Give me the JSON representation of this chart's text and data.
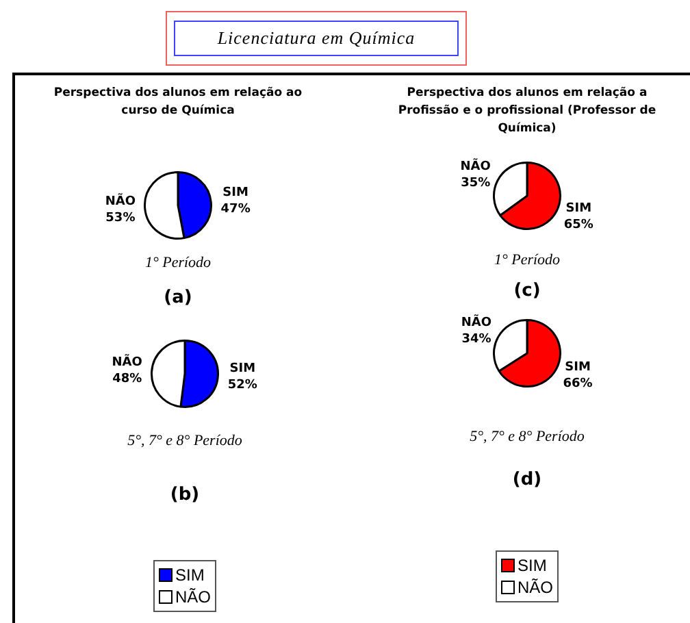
{
  "chart_data": [
    {
      "type": "pie",
      "title": "Licenciatura em Química",
      "subtitle": "Perspectiva dos alunos em relação ao curso de Química",
      "categories": [
        "SIM",
        "NÃO"
      ],
      "values": [
        47,
        53
      ],
      "value_labels": [
        "47%",
        "53%"
      ],
      "colors": [
        "#0000ff",
        "#ffffff"
      ],
      "annotations": [
        "1° Período",
        "(a)"
      ]
    },
    {
      "type": "pie",
      "categories": [
        "SIM",
        "NÃO"
      ],
      "values": [
        52,
        48
      ],
      "value_labels": [
        "52%",
        "48%"
      ],
      "colors": [
        "#0000ff",
        "#ffffff"
      ],
      "legend": "bottom",
      "annotations": [
        "5°, 7° e 8° Período",
        "(b)"
      ]
    },
    {
      "type": "pie",
      "subtitle": "Perspectiva dos alunos em relação a Profissão e o profissional (Professor de Química)",
      "categories": [
        "SIM",
        "NÃO"
      ],
      "values": [
        65,
        35
      ],
      "value_labels": [
        "65%",
        "35%"
      ],
      "colors": [
        "#ff0000",
        "#ffffff"
      ],
      "annotations": [
        "1° Período",
        "(c)"
      ]
    },
    {
      "type": "pie",
      "categories": [
        "SIM",
        "NÃO"
      ],
      "values": [
        66,
        34
      ],
      "value_labels": [
        "66%",
        "34%"
      ],
      "colors": [
        "#ff0000",
        "#ffffff"
      ],
      "legend": "bottom",
      "annotations": [
        "5°, 7° e 8° Período",
        "(d)"
      ]
    }
  ]
}
